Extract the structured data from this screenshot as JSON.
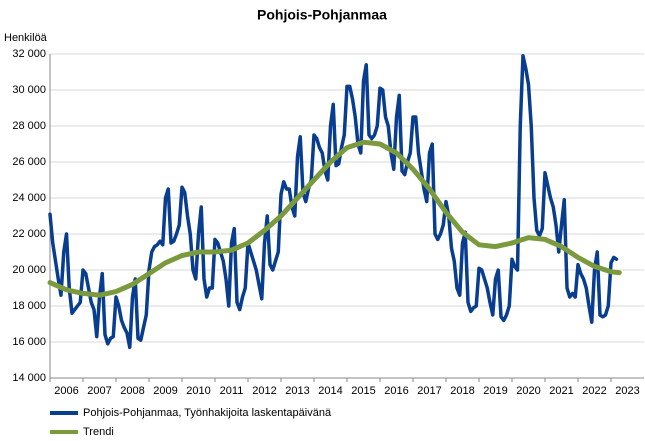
{
  "chart_data": {
    "type": "line",
    "title": "Pohjois-Pohjanmaa",
    "y_label": "Henkilöä",
    "xlim": [
      2006,
      2024
    ],
    "xticks": [
      2006,
      2007,
      2008,
      2009,
      2010,
      2011,
      2012,
      2013,
      2014,
      2015,
      2016,
      2017,
      2018,
      2019,
      2020,
      2021,
      2022,
      2023
    ],
    "ylim": [
      14000,
      32000
    ],
    "yticks": [
      {
        "value": 14000,
        "label": "14 000"
      },
      {
        "value": 16000,
        "label": "16 000"
      },
      {
        "value": 18000,
        "label": "18 000"
      },
      {
        "value": 20000,
        "label": "20 000"
      },
      {
        "value": 22000,
        "label": "22 000"
      },
      {
        "value": 24000,
        "label": "24 000"
      },
      {
        "value": 26000,
        "label": "26 000"
      },
      {
        "value": 28000,
        "label": "28 000"
      },
      {
        "value": 30000,
        "label": "30 000"
      },
      {
        "value": 32000,
        "label": "32 000"
      }
    ],
    "grid": true,
    "legend": "bottom",
    "x": [
      2006,
      2006.083,
      2006.167,
      2006.25,
      2006.333,
      2006.417,
      2006.5,
      2006.583,
      2006.667,
      2006.75,
      2006.833,
      2006.917,
      2007,
      2007.083,
      2007.167,
      2007.25,
      2007.333,
      2007.417,
      2007.5,
      2007.583,
      2007.667,
      2007.75,
      2007.833,
      2007.917,
      2008,
      2008.083,
      2008.167,
      2008.25,
      2008.333,
      2008.417,
      2008.5,
      2008.583,
      2008.667,
      2008.75,
      2008.833,
      2008.917,
      2009,
      2009.083,
      2009.167,
      2009.25,
      2009.333,
      2009.417,
      2009.5,
      2009.583,
      2009.667,
      2009.75,
      2009.833,
      2009.917,
      2010,
      2010.083,
      2010.167,
      2010.25,
      2010.333,
      2010.417,
      2010.5,
      2010.583,
      2010.667,
      2010.75,
      2010.833,
      2010.917,
      2011,
      2011.083,
      2011.167,
      2011.25,
      2011.333,
      2011.417,
      2011.5,
      2011.583,
      2011.667,
      2011.75,
      2011.833,
      2011.917,
      2012,
      2012.083,
      2012.167,
      2012.25,
      2012.333,
      2012.417,
      2012.5,
      2012.583,
      2012.667,
      2012.75,
      2012.833,
      2012.917,
      2013,
      2013.083,
      2013.167,
      2013.25,
      2013.333,
      2013.417,
      2013.5,
      2013.583,
      2013.667,
      2013.75,
      2013.833,
      2013.917,
      2014,
      2014.083,
      2014.167,
      2014.25,
      2014.333,
      2014.417,
      2014.5,
      2014.583,
      2014.667,
      2014.75,
      2014.833,
      2014.917,
      2015,
      2015.083,
      2015.167,
      2015.25,
      2015.333,
      2015.417,
      2015.5,
      2015.583,
      2015.667,
      2015.75,
      2015.833,
      2015.917,
      2016,
      2016.083,
      2016.167,
      2016.25,
      2016.333,
      2016.417,
      2016.5,
      2016.583,
      2016.667,
      2016.75,
      2016.833,
      2016.917,
      2017,
      2017.083,
      2017.167,
      2017.25,
      2017.333,
      2017.417,
      2017.5,
      2017.583,
      2017.667,
      2017.75,
      2017.833,
      2017.917,
      2018,
      2018.083,
      2018.167,
      2018.25,
      2018.333,
      2018.417,
      2018.5,
      2018.583,
      2018.667,
      2018.75,
      2018.833,
      2018.917,
      2019,
      2019.083,
      2019.167,
      2019.25,
      2019.333,
      2019.417,
      2019.5,
      2019.583,
      2019.667,
      2019.75,
      2019.833,
      2019.917,
      2020,
      2020.083,
      2020.167,
      2020.25,
      2020.333,
      2020.417,
      2020.5,
      2020.583,
      2020.667,
      2020.75,
      2020.833,
      2020.917,
      2021,
      2021.083,
      2021.167,
      2021.25,
      2021.333,
      2021.417,
      2021.5,
      2021.583,
      2021.667,
      2021.75,
      2021.833,
      2021.917,
      2022,
      2022.083,
      2022.167,
      2022.25,
      2022.333,
      2022.417,
      2022.5,
      2022.583,
      2022.667,
      2022.75,
      2022.833,
      2022.917,
      2023,
      2023.083,
      2023.167
    ],
    "series": [
      {
        "name": "Pohjois-Pohjanmaa, Työnhakijoita laskentapäivänä",
        "color": "#083d8f",
        "values": [
          23100,
          21500,
          20500,
          19500,
          18600,
          21000,
          22000,
          19000,
          17600,
          17800,
          18000,
          18200,
          20000,
          19800,
          19000,
          18200,
          17800,
          16300,
          18500,
          19800,
          16400,
          15900,
          16200,
          16300,
          18500,
          18000,
          17200,
          16800,
          16500,
          15700,
          18500,
          19500,
          16200,
          16100,
          16800,
          17500,
          20000,
          21000,
          21300,
          21400,
          21600,
          21400,
          24000,
          24500,
          21500,
          21600,
          22000,
          22500,
          24600,
          24300,
          23000,
          22000,
          20000,
          19500,
          22000,
          23500,
          19500,
          18500,
          19000,
          19000,
          21700,
          21500,
          21000,
          20500,
          19500,
          18000,
          21500,
          22300,
          18200,
          17800,
          18500,
          19000,
          21500,
          21000,
          20500,
          20000,
          19200,
          18400,
          21500,
          23000,
          20300,
          20000,
          20500,
          21000,
          24200,
          24900,
          24500,
          24500,
          23500,
          23000,
          26300,
          27400,
          24300,
          23800,
          24500,
          25000,
          27500,
          27300,
          26800,
          26500,
          25500,
          25000,
          28000,
          29200,
          25800,
          25900,
          26800,
          27500,
          30200,
          30200,
          29500,
          28500,
          27000,
          26500,
          30500,
          31400,
          27500,
          27300,
          27500,
          28000,
          30100,
          30000,
          28500,
          28000,
          26500,
          25600,
          28500,
          29700,
          25500,
          25300,
          26000,
          26500,
          28500,
          28500,
          26500,
          25500,
          24500,
          23800,
          26500,
          27000,
          22000,
          21700,
          22000,
          22500,
          23800,
          23000,
          21200,
          20500,
          19000,
          18600,
          21500,
          22100,
          18200,
          17700,
          17900,
          18000,
          20100,
          20000,
          19500,
          19000,
          18200,
          17500,
          19500,
          20000,
          17400,
          17200,
          17500,
          18000,
          20600,
          20200,
          20000,
          28000,
          31900,
          31200,
          30300,
          28000,
          24000,
          22200,
          21900,
          22300,
          25400,
          24700,
          24000,
          23500,
          22500,
          21000,
          22500,
          23900,
          19000,
          18500,
          18700,
          18500,
          20300,
          19800,
          19500,
          19000,
          18000,
          17100,
          20000,
          21000,
          17500,
          17400,
          17500,
          18000,
          20400,
          20700,
          20600
        ]
      },
      {
        "name": "Trendi",
        "color": "#7b9a3d",
        "x": [
          2006,
          2006.5,
          2007,
          2007.5,
          2008,
          2008.5,
          2009,
          2009.5,
          2010,
          2010.5,
          2011,
          2011.5,
          2012,
          2012.5,
          2013,
          2013.5,
          2014,
          2014.5,
          2015,
          2015.5,
          2016,
          2016.5,
          2017,
          2017.5,
          2018,
          2018.5,
          2019,
          2019.5,
          2020,
          2020.5,
          2021,
          2021.5,
          2022,
          2022.5,
          2023,
          2023.25
        ],
        "values": [
          19300,
          18900,
          18700,
          18600,
          18800,
          19200,
          19800,
          20400,
          20800,
          21000,
          21000,
          21100,
          21500,
          22200,
          23000,
          24000,
          25000,
          26000,
          26800,
          27100,
          27000,
          26500,
          25600,
          24500,
          23200,
          22100,
          21400,
          21300,
          21500,
          21800,
          21700,
          21300,
          20700,
          20200,
          19900,
          19850
        ]
      }
    ]
  }
}
